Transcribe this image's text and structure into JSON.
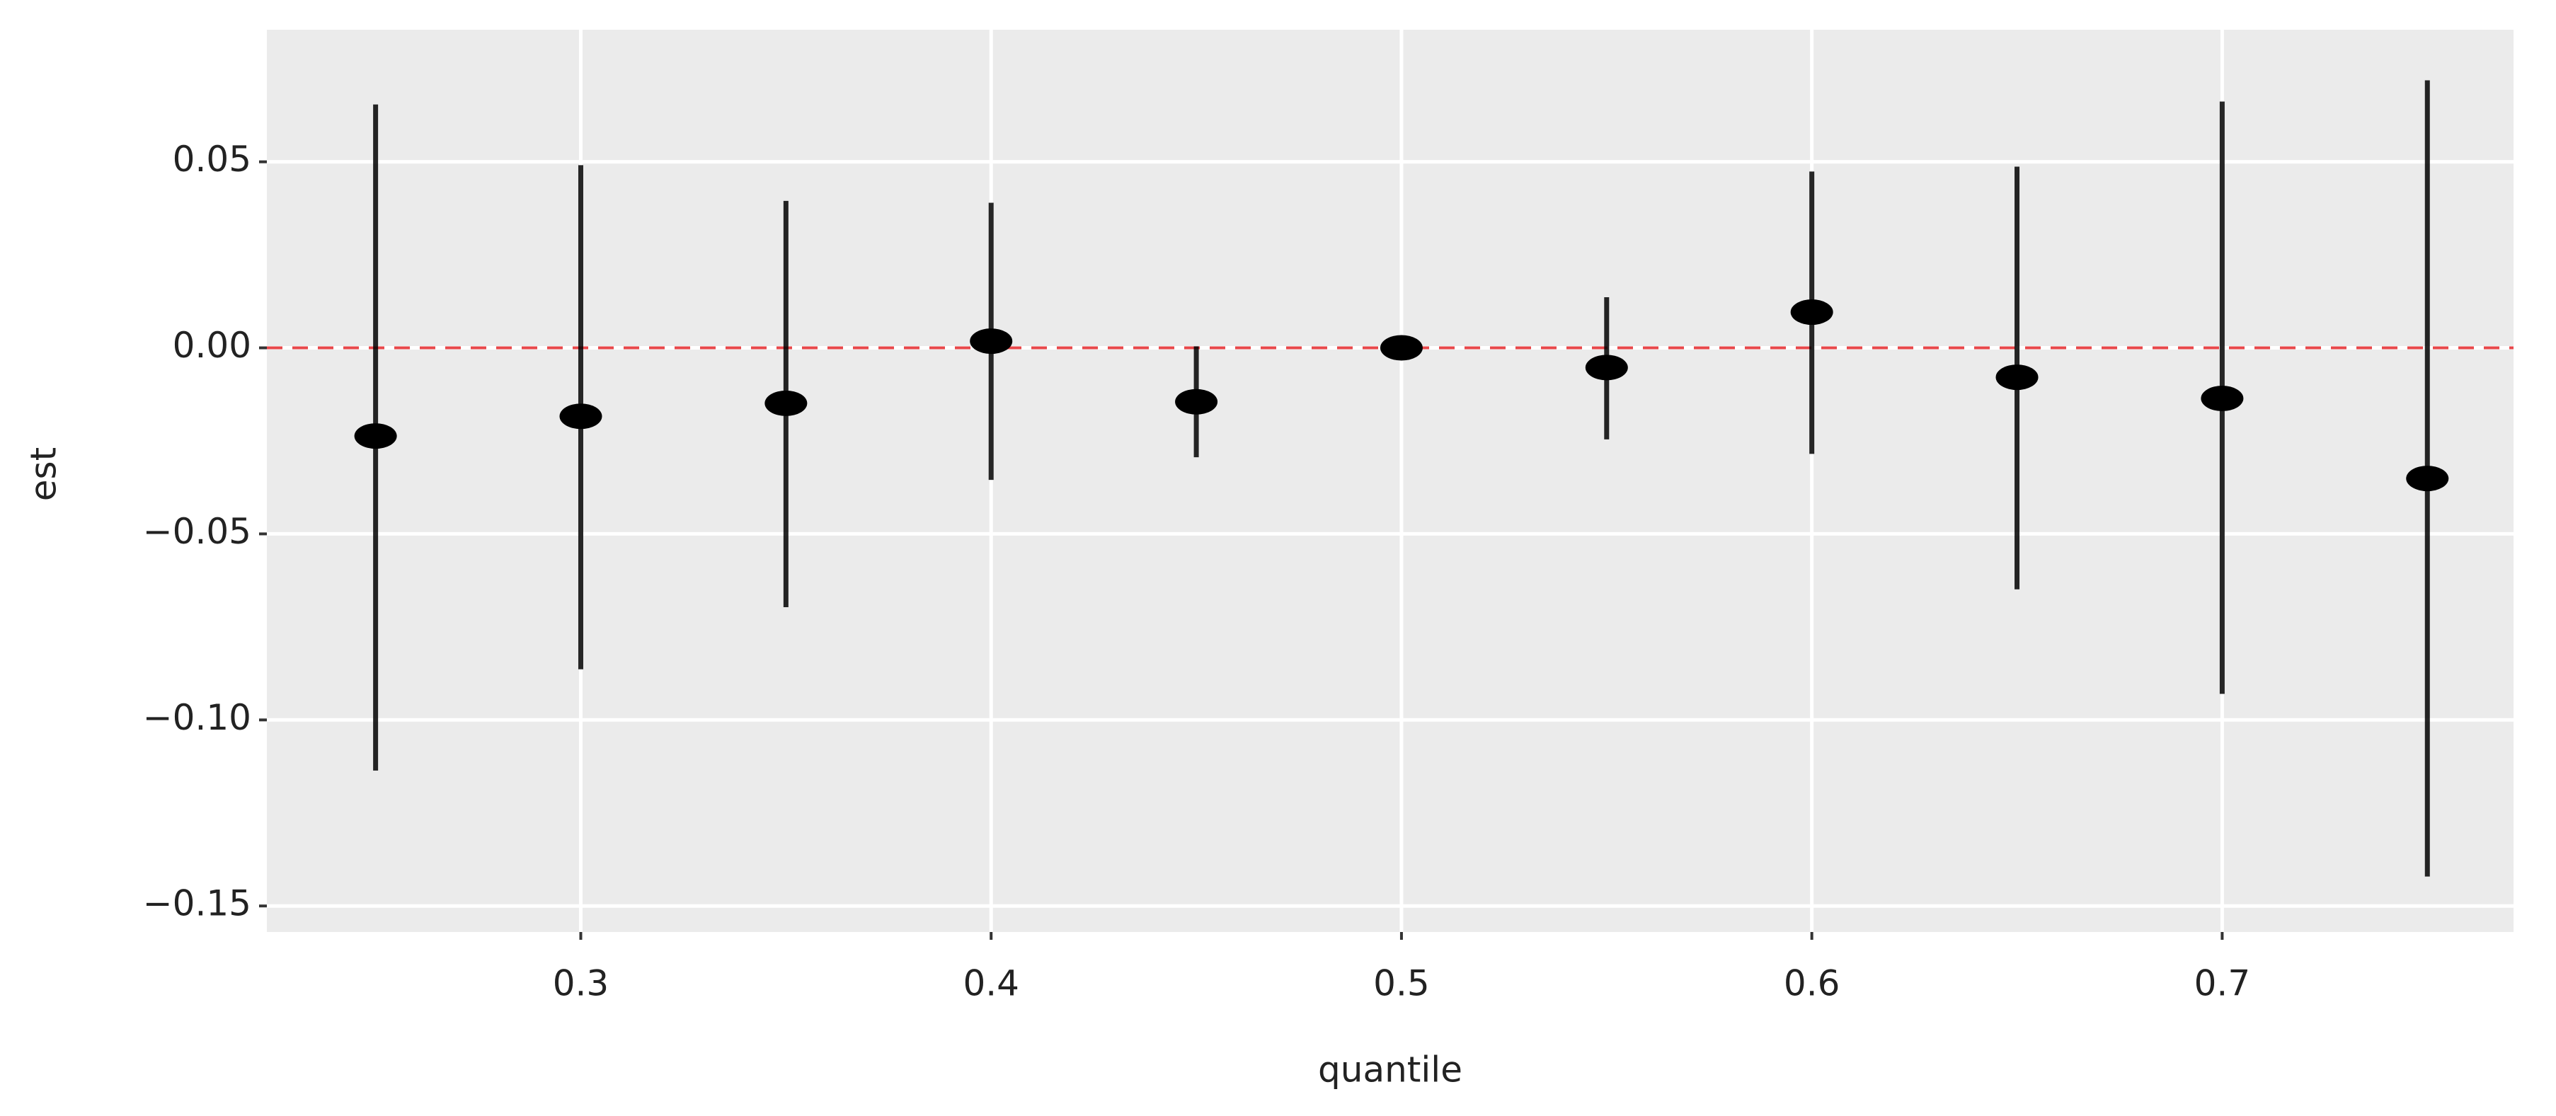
{
  "chart_data": {
    "type": "pointrange",
    "x_label": "quantile",
    "y_label": "est",
    "x": [
      0.25,
      0.3,
      0.35,
      0.4,
      0.45,
      0.5,
      0.55,
      0.6,
      0.65,
      0.7,
      0.75
    ],
    "values": [
      -0.0237,
      -0.0184,
      -0.0149,
      0.0018,
      -0.0145,
      0,
      -0.0053,
      0.0096,
      -0.0079,
      -0.0136,
      -0.0351
    ],
    "lower": [
      -0.1136,
      -0.0864,
      -0.0697,
      -0.0355,
      -0.0294,
      0,
      -0.0246,
      -0.0285,
      -0.0649,
      -0.093,
      -0.1421
    ],
    "upper": [
      0.0654,
      0.0491,
      0.0395,
      0.039,
      0.0004,
      0,
      0.0136,
      0.0474,
      0.0487,
      0.0662,
      0.0719
    ],
    "color": "#000000",
    "xlim": [
      0.2235,
      0.771
    ],
    "ylim": [
      -0.157,
      0.0855
    ],
    "xticks": [
      0.3,
      0.4,
      0.5,
      0.6,
      0.7
    ],
    "yticks": [
      0.05,
      {
        "value": 0,
        "label": "0.00"
      },
      {
        "value": -0.05,
        "label": "−0.05"
      },
      {
        "value": -0.1,
        "label": "−0.10"
      },
      {
        "value": -0.15,
        "label": "−0.15"
      }
    ],
    "reference_line": {
      "value": 0,
      "color": "#e8474a",
      "dashed": true
    },
    "grid": true
  }
}
